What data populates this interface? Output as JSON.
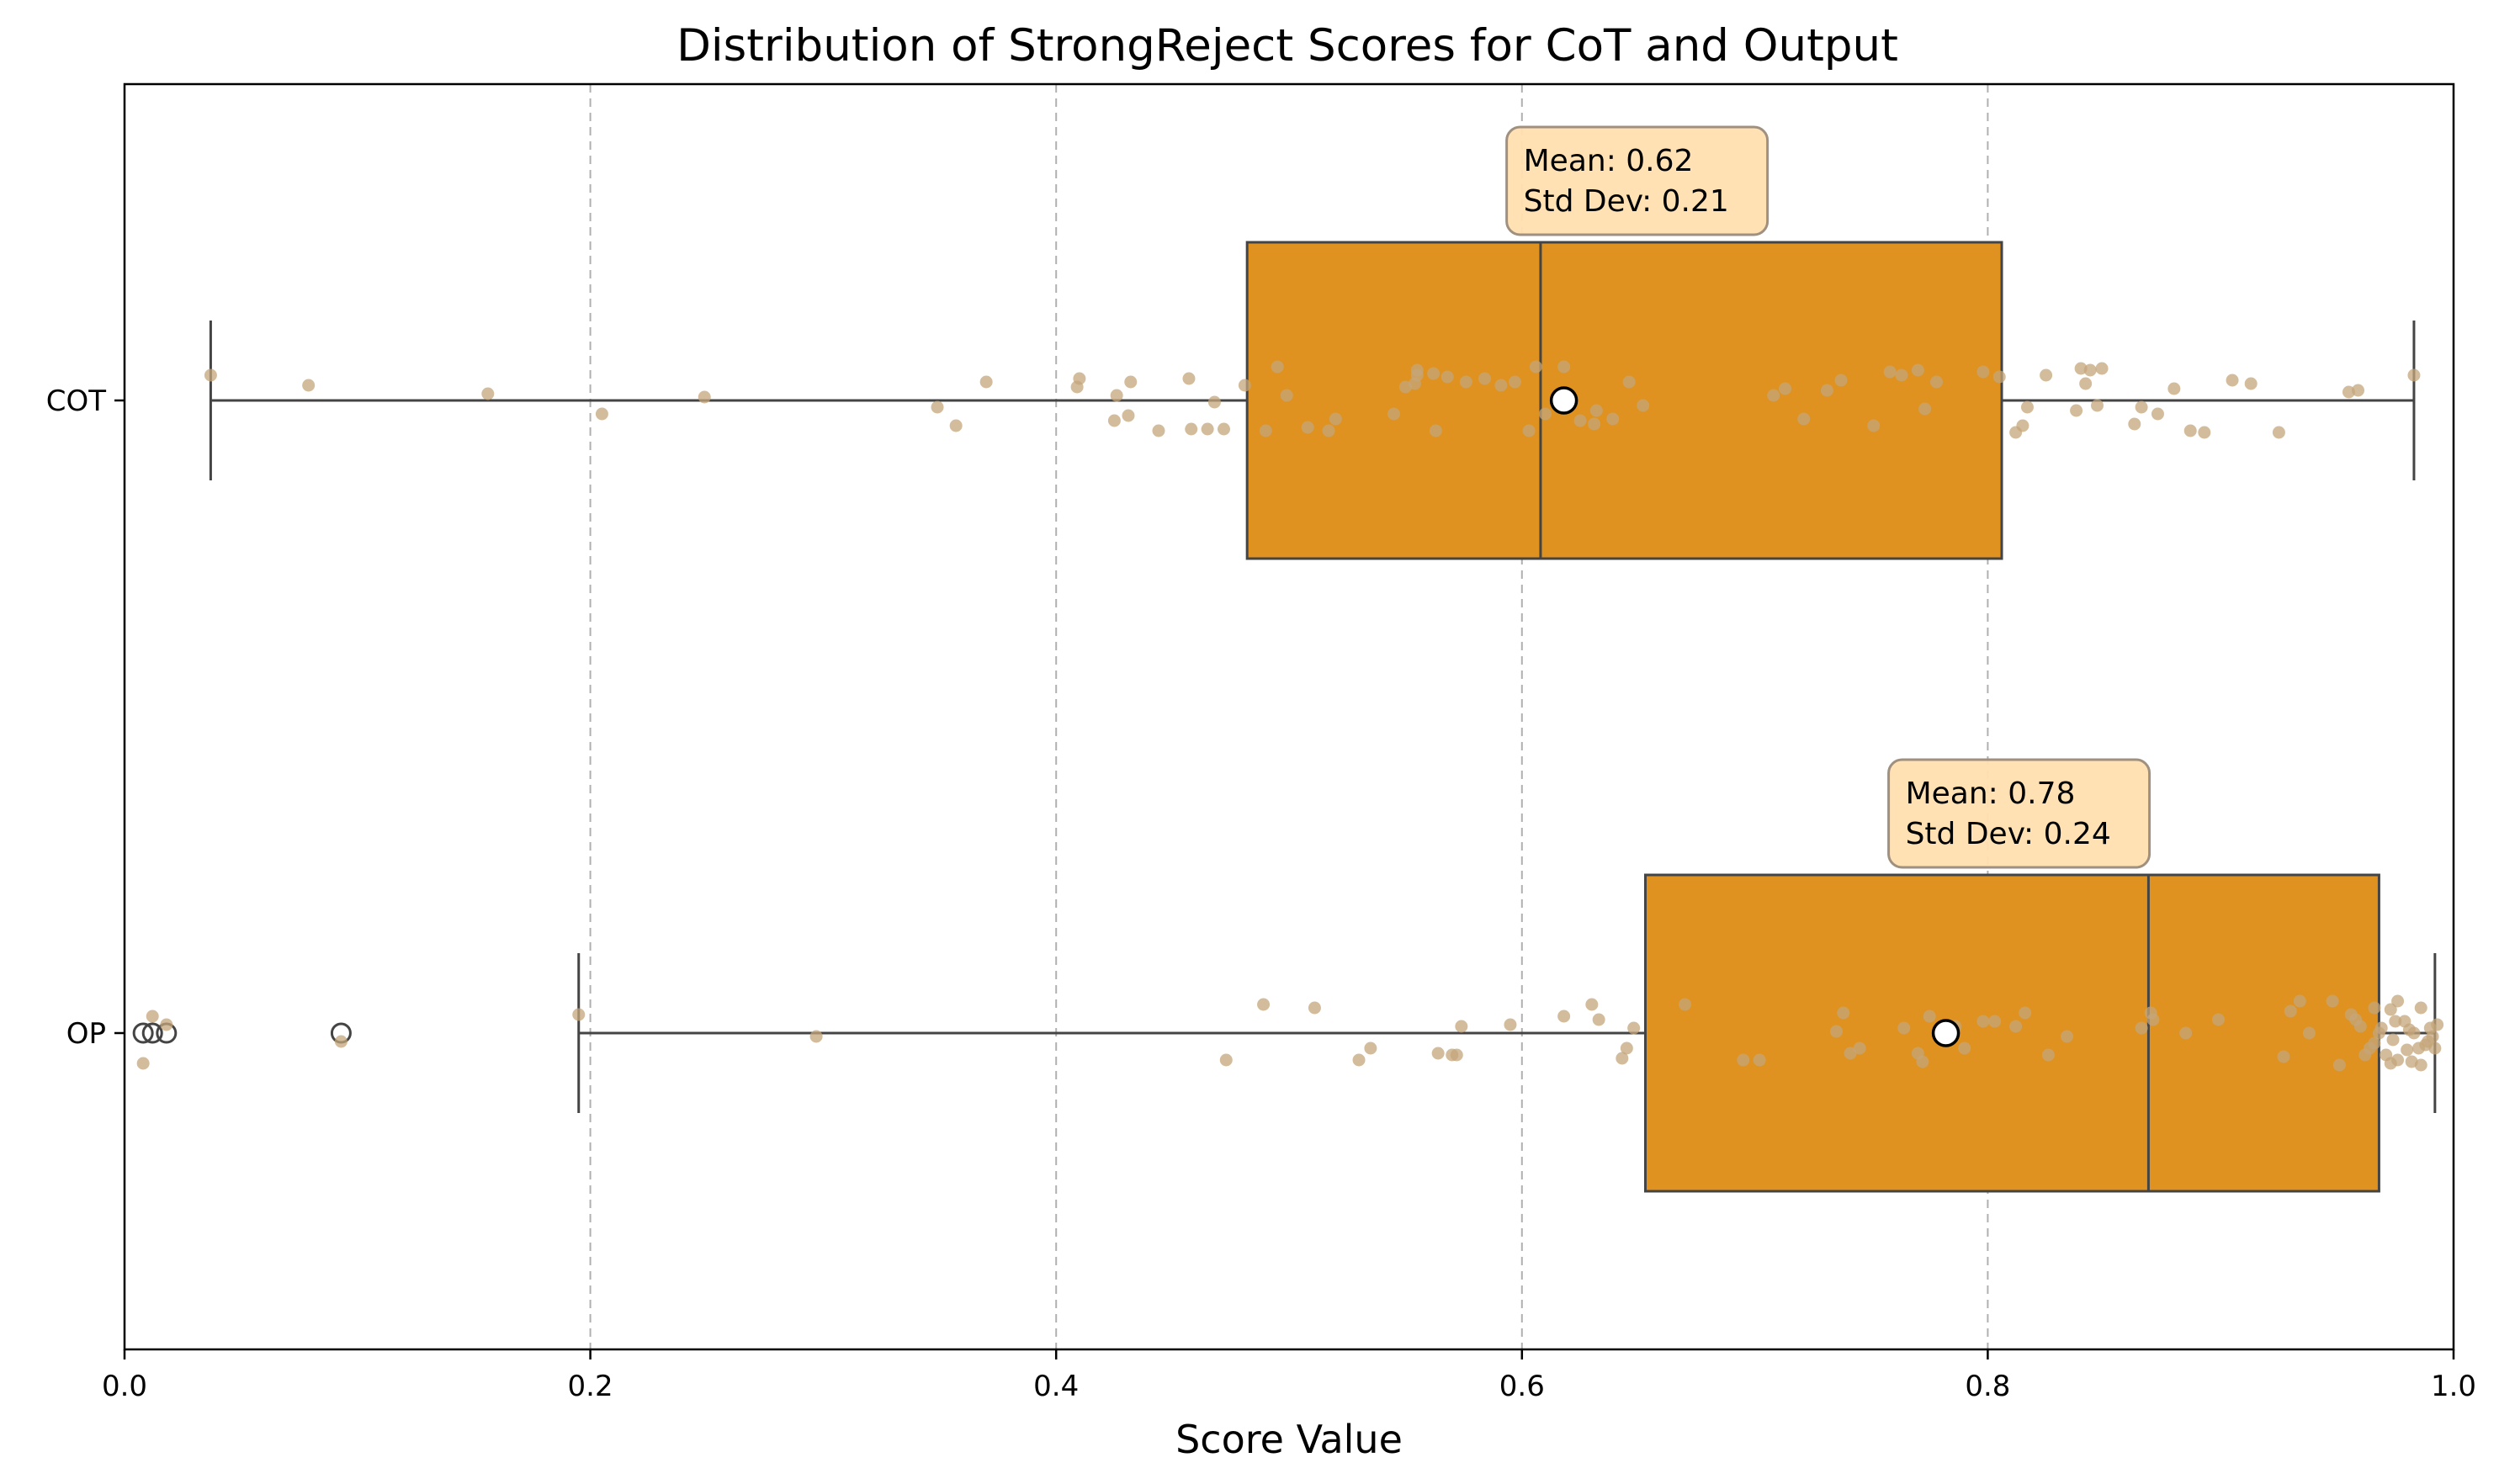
{
  "chart_data": {
    "type": "box",
    "orientation": "horizontal",
    "title": "Distribution of StrongReject Scores for CoT and Output",
    "xlabel": "Score Value",
    "ylabel": "",
    "xlim": [
      0.0,
      1.0
    ],
    "xticks": [
      0.0,
      0.2,
      0.4,
      0.6,
      0.8,
      1.0
    ],
    "xtick_labels": [
      "0.0",
      "0.2",
      "0.4",
      "0.6",
      "0.8",
      "1.0"
    ],
    "grid": "x, dashed",
    "colors": {
      "box": "#df9220",
      "strip": "#c4a67a",
      "annotation": "#ffdfb0",
      "edge": "#444444"
    },
    "groups": [
      {
        "label": "COT",
        "whisker_low": 0.037,
        "q1": 0.482,
        "median": 0.608,
        "q3": 0.806,
        "whisker_high": 0.983,
        "mean": 0.618,
        "outliers": [],
        "annotation": {
          "mean_text": "Mean: 0.62",
          "std_text": "Std Dev: 0.21"
        },
        "points": [
          [
            0.037,
            -0.15
          ],
          [
            0.079,
            -0.09
          ],
          [
            0.156,
            -0.04
          ],
          [
            0.205,
            0.08
          ],
          [
            0.249,
            -0.02
          ],
          [
            0.349,
            0.04
          ],
          [
            0.357,
            0.15
          ],
          [
            0.37,
            -0.11
          ],
          [
            0.409,
            -0.08
          ],
          [
            0.41,
            -0.13
          ],
          [
            0.425,
            0.12
          ],
          [
            0.426,
            -0.03
          ],
          [
            0.431,
            0.09
          ],
          [
            0.432,
            -0.11
          ],
          [
            0.444,
            0.18
          ],
          [
            0.457,
            -0.13
          ],
          [
            0.458,
            0.17
          ],
          [
            0.465,
            0.17
          ],
          [
            0.468,
            0.01
          ],
          [
            0.472,
            0.17
          ],
          [
            0.481,
            -0.09
          ],
          [
            0.49,
            0.18
          ],
          [
            0.495,
            -0.2
          ],
          [
            0.499,
            -0.03
          ],
          [
            0.508,
            0.16
          ],
          [
            0.517,
            0.18
          ],
          [
            0.52,
            0.11
          ],
          [
            0.545,
            0.08
          ],
          [
            0.55,
            -0.08
          ],
          [
            0.554,
            -0.1
          ],
          [
            0.555,
            -0.18
          ],
          [
            0.555,
            -0.15
          ],
          [
            0.568,
            -0.14
          ],
          [
            0.562,
            -0.16
          ],
          [
            0.563,
            0.18
          ],
          [
            0.576,
            -0.11
          ],
          [
            0.584,
            -0.13
          ],
          [
            0.591,
            -0.09
          ],
          [
            0.597,
            -0.11
          ],
          [
            0.603,
            0.18
          ],
          [
            0.606,
            -0.2
          ],
          [
            0.61,
            0.08
          ],
          [
            0.618,
            -0.2
          ],
          [
            0.625,
            0.12
          ],
          [
            0.631,
            0.14
          ],
          [
            0.632,
            0.06
          ],
          [
            0.639,
            0.11
          ],
          [
            0.646,
            -0.11
          ],
          [
            0.652,
            0.03
          ],
          [
            0.708,
            -0.03
          ],
          [
            0.713,
            -0.07
          ],
          [
            0.721,
            0.11
          ],
          [
            0.731,
            -0.06
          ],
          [
            0.737,
            -0.12
          ],
          [
            0.751,
            0.15
          ],
          [
            0.758,
            -0.17
          ],
          [
            0.763,
            -0.15
          ],
          [
            0.77,
            -0.18
          ],
          [
            0.773,
            0.05
          ],
          [
            0.778,
            -0.11
          ],
          [
            0.798,
            -0.17
          ],
          [
            0.805,
            -0.14
          ],
          [
            0.812,
            0.19
          ],
          [
            0.815,
            0.15
          ],
          [
            0.817,
            0.04
          ],
          [
            0.825,
            -0.15
          ],
          [
            0.838,
            0.06
          ],
          [
            0.84,
            -0.19
          ],
          [
            0.842,
            -0.1
          ],
          [
            0.844,
            -0.18
          ],
          [
            0.847,
            0.03
          ],
          [
            0.849,
            -0.19
          ],
          [
            0.863,
            0.14
          ],
          [
            0.866,
            0.04
          ],
          [
            0.873,
            0.08
          ],
          [
            0.88,
            -0.07
          ],
          [
            0.887,
            0.18
          ],
          [
            0.893,
            0.19
          ],
          [
            0.905,
            -0.12
          ],
          [
            0.913,
            -0.1
          ],
          [
            0.925,
            0.19
          ],
          [
            0.955,
            -0.05
          ],
          [
            0.959,
            -0.06
          ],
          [
            0.983,
            -0.15
          ]
        ]
      },
      {
        "label": "OP",
        "whisker_low": 0.195,
        "q1": 0.653,
        "median": 0.869,
        "q3": 0.968,
        "whisker_high": 0.992,
        "mean": 0.782,
        "outliers": [
          0.008,
          0.012,
          0.018,
          0.093
        ],
        "annotation": {
          "mean_text": "Mean: 0.78",
          "std_text": "Std Dev: 0.24"
        },
        "points": [
          [
            0.008,
            0.18
          ],
          [
            0.012,
            -0.1
          ],
          [
            0.018,
            -0.05
          ],
          [
            0.093,
            0.05
          ],
          [
            0.195,
            -0.11
          ],
          [
            0.297,
            0.02
          ],
          [
            0.473,
            0.16
          ],
          [
            0.489,
            -0.17
          ],
          [
            0.511,
            -0.15
          ],
          [
            0.53,
            0.16
          ],
          [
            0.535,
            0.09
          ],
          [
            0.564,
            0.12
          ],
          [
            0.57,
            0.13
          ],
          [
            0.572,
            0.13
          ],
          [
            0.574,
            -0.04
          ],
          [
            0.595,
            -0.05
          ],
          [
            0.618,
            -0.1
          ],
          [
            0.63,
            -0.17
          ],
          [
            0.633,
            -0.08
          ],
          [
            0.643,
            0.15
          ],
          [
            0.645,
            0.09
          ],
          [
            0.648,
            -0.03
          ],
          [
            0.67,
            -0.17
          ],
          [
            0.695,
            0.16
          ],
          [
            0.702,
            0.16
          ],
          [
            0.735,
            -0.01
          ],
          [
            0.738,
            -0.12
          ],
          [
            0.741,
            0.12
          ],
          [
            0.745,
            0.09
          ],
          [
            0.764,
            -0.03
          ],
          [
            0.77,
            0.12
          ],
          [
            0.772,
            0.17
          ],
          [
            0.775,
            -0.1
          ],
          [
            0.784,
            -0.02
          ],
          [
            0.786,
            -0.04
          ],
          [
            0.79,
            0.09
          ],
          [
            0.798,
            -0.07
          ],
          [
            0.803,
            -0.07
          ],
          [
            0.812,
            -0.04
          ],
          [
            0.816,
            -0.12
          ],
          [
            0.826,
            0.13
          ],
          [
            0.834,
            0.02
          ],
          [
            0.866,
            -0.03
          ],
          [
            0.87,
            -0.12
          ],
          [
            0.871,
            -0.08
          ],
          [
            0.885,
            0.0
          ],
          [
            0.899,
            -0.08
          ],
          [
            0.927,
            0.14
          ],
          [
            0.93,
            -0.13
          ],
          [
            0.934,
            -0.19
          ],
          [
            0.938,
            0.0
          ],
          [
            0.948,
            -0.19
          ],
          [
            0.951,
            0.19
          ],
          [
            0.956,
            -0.11
          ],
          [
            0.958,
            -0.08
          ],
          [
            0.96,
            -0.04
          ],
          [
            0.962,
            0.13
          ],
          [
            0.964,
            0.09
          ],
          [
            0.966,
            0.06
          ],
          [
            0.966,
            -0.15
          ],
          [
            0.968,
            0.0
          ],
          [
            0.969,
            -0.03
          ],
          [
            0.971,
            0.13
          ],
          [
            0.973,
            0.18
          ],
          [
            0.973,
            -0.14
          ],
          [
            0.974,
            0.04
          ],
          [
            0.975,
            -0.07
          ],
          [
            0.976,
            0.16
          ],
          [
            0.976,
            -0.19
          ],
          [
            0.979,
            -0.07
          ],
          [
            0.98,
            0.1
          ],
          [
            0.981,
            -0.02
          ],
          [
            0.982,
            0.17
          ],
          [
            0.983,
            0.0
          ],
          [
            0.985,
            0.09
          ],
          [
            0.986,
            0.19
          ],
          [
            0.986,
            -0.15
          ],
          [
            0.988,
            0.07
          ],
          [
            0.989,
            0.05
          ],
          [
            0.99,
            -0.03
          ],
          [
            0.991,
            0.02
          ],
          [
            0.992,
            0.09
          ],
          [
            0.993,
            -0.05
          ]
        ]
      }
    ]
  }
}
